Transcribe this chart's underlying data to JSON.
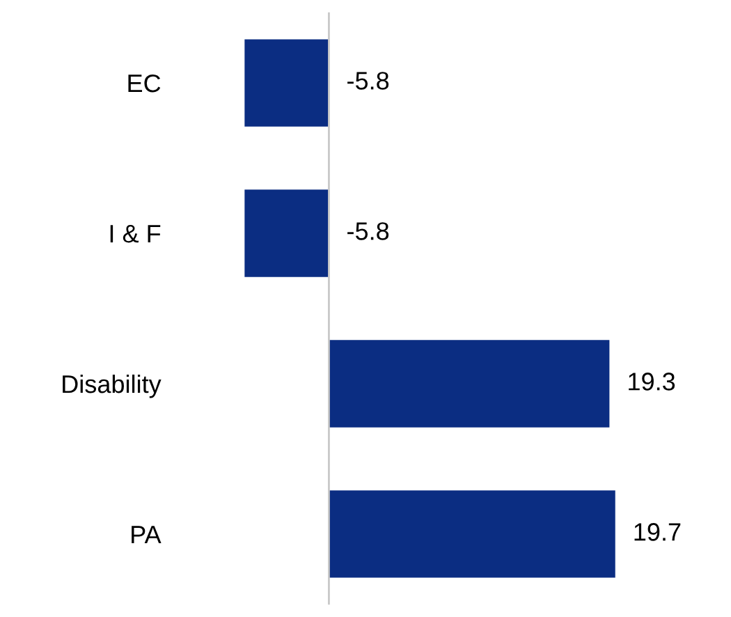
{
  "chart_data": {
    "type": "bar",
    "orientation": "horizontal",
    "categories": [
      "EC",
      "I & F",
      "Disability",
      "PA"
    ],
    "values": [
      -5.8,
      -5.8,
      19.3,
      19.7
    ],
    "color": "#0b2d82",
    "data_labels": true,
    "grid": false,
    "legend": false
  }
}
